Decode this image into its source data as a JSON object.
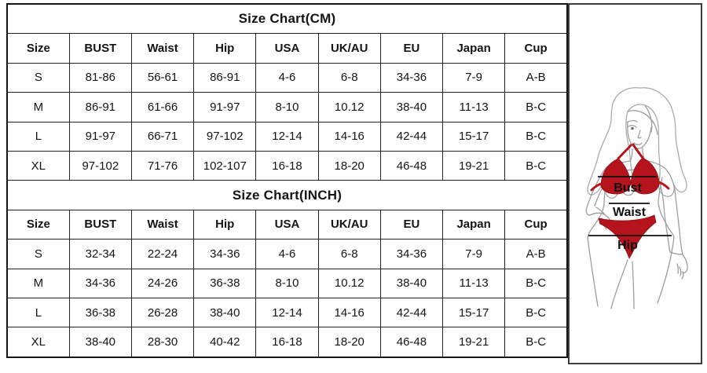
{
  "size_tables": {
    "columns": [
      "Size",
      "BUST",
      "Waist",
      "Hip",
      "USA",
      "UK/AU",
      "EU",
      "Japan",
      "Cup"
    ],
    "tables": [
      {
        "id": "cm",
        "title": "Size Chart(CM)",
        "rows": [
          [
            "S",
            "81-86",
            "56-61",
            "86-91",
            "4-6",
            "6-8",
            "34-36",
            "7-9",
            "A-B"
          ],
          [
            "M",
            "86-91",
            "61-66",
            "91-97",
            "8-10",
            "10.12",
            "38-40",
            "11-13",
            "B-C"
          ],
          [
            "L",
            "91-97",
            "66-71",
            "97-102",
            "12-14",
            "14-16",
            "42-44",
            "15-17",
            "B-C"
          ],
          [
            "XL",
            "97-102",
            "71-76",
            "102-107",
            "16-18",
            "18-20",
            "46-48",
            "19-21",
            "B-C"
          ]
        ]
      },
      {
        "id": "inch",
        "title": "Size Chart(INCH)",
        "rows": [
          [
            "S",
            "32-34",
            "22-24",
            "34-36",
            "4-6",
            "6-8",
            "34-36",
            "7-9",
            "A-B"
          ],
          [
            "M",
            "34-36",
            "24-26",
            "36-38",
            "8-10",
            "10.12",
            "38-40",
            "11-13",
            "B-C"
          ],
          [
            "L",
            "36-38",
            "26-28",
            "38-40",
            "12-14",
            "14-16",
            "42-44",
            "15-17",
            "B-C"
          ],
          [
            "XL",
            "38-40",
            "28-30",
            "40-42",
            "16-18",
            "18-20",
            "46-48",
            "19-21",
            "B-C"
          ]
        ]
      }
    ]
  },
  "figure": {
    "labels": {
      "bust": "Bust",
      "waist": "Waist",
      "hip": "Hip"
    },
    "colors": {
      "bikini_red": "#b5141d",
      "bikini_red_dark": "#8d0d14"
    }
  }
}
